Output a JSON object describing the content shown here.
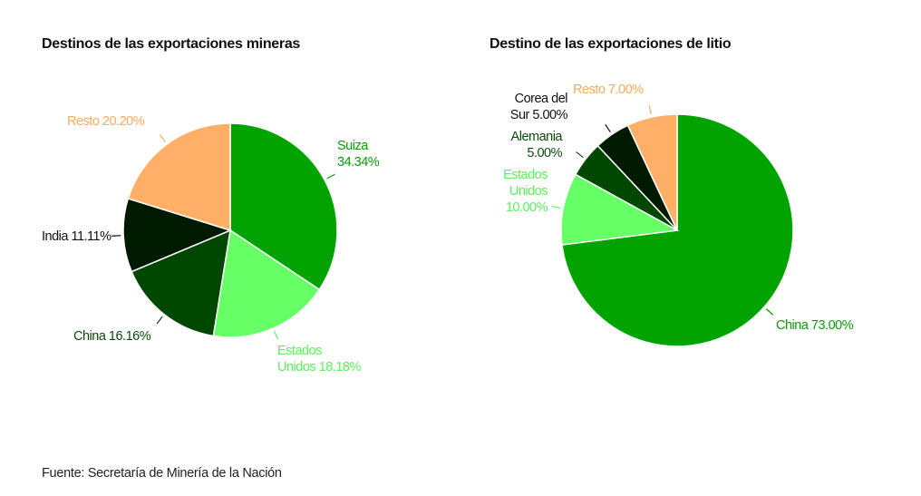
{
  "chart_data": [
    {
      "type": "pie",
      "title": "Destinos de las exportaciones mineras",
      "slices": [
        {
          "label": "Suiza",
          "value": 34.34,
          "display": "Suiza\n34.34%",
          "color": "#00a300",
          "text_color": "#0a9a0a"
        },
        {
          "label": "Estados Unidos",
          "value": 18.18,
          "display": "Estados\nUnidos 18.18%",
          "color": "#66ff66",
          "text_color": "#5ef05e"
        },
        {
          "label": "China",
          "value": 16.16,
          "display": "China 16.16%",
          "color": "#004700",
          "text_color": "#0b4a0b"
        },
        {
          "label": "India",
          "value": 11.11,
          "display": "India 11.11%",
          "color": "#001a00",
          "text_color": "#111111"
        },
        {
          "label": "Resto",
          "value": 20.2,
          "display": "Resto 20.20%",
          "color": "#ffb066",
          "text_color": "#f9aa5c"
        }
      ]
    },
    {
      "type": "pie",
      "title": "Destino de las exportaciones de litio",
      "slices": [
        {
          "label": "China",
          "value": 73.0,
          "display": "China 73.00%",
          "color": "#00a300",
          "text_color": "#0a9a0a"
        },
        {
          "label": "Estados Unidos",
          "value": 10.0,
          "display": "Estados\nUnidos\n10.00%",
          "color": "#66ff66",
          "text_color": "#5ef05e"
        },
        {
          "label": "Alemania",
          "value": 5.0,
          "display": "Alemania\n5.00%",
          "color": "#004700",
          "text_color": "#0b4a0b"
        },
        {
          "label": "Corea del Sur",
          "value": 5.0,
          "display": "Corea del\nSur 5.00%",
          "color": "#001a00",
          "text_color": "#111111"
        },
        {
          "label": "Resto",
          "value": 7.0,
          "display": "Resto 7.00%",
          "color": "#ffb066",
          "text_color": "#f9aa5c"
        }
      ]
    }
  ],
  "source": "Fuente: Secretaría de Minería de la Nación"
}
